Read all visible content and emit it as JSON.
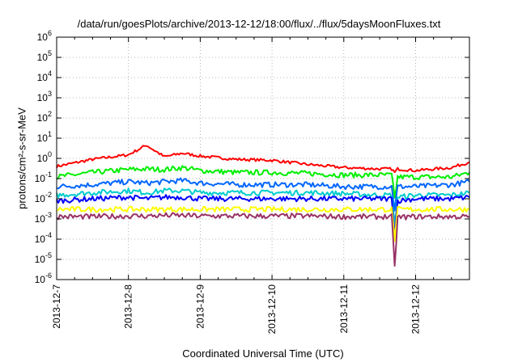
{
  "chart_data": {
    "type": "line",
    "title": "/data/run/goesPlots/archive/2013-12-12/18:00/flux/../flux/5daysMoonFluxes.txt",
    "xlabel": "Coordinated Universal Time (UTC)",
    "ylabel": "protons/cm²-s-sr-MeV",
    "y_scale": "log",
    "xlim": [
      "2013-12-07 00:00",
      "2013-12-12 18:00"
    ],
    "ylim": [
      1e-06,
      1000000.0
    ],
    "x_ticks": [
      "2013-12-7",
      "2013-12-8",
      "2013-12-9",
      "2013-12-10",
      "2013-12-11",
      "2013-12-12"
    ],
    "y_ticks": [
      {
        "value": 1e-06,
        "base": "10",
        "exp": "-6"
      },
      {
        "value": 1e-05,
        "base": "10",
        "exp": "-5"
      },
      {
        "value": 0.0001,
        "base": "10",
        "exp": "-4"
      },
      {
        "value": 0.001,
        "base": "10",
        "exp": "-3"
      },
      {
        "value": 0.01,
        "base": "10",
        "exp": "-2"
      },
      {
        "value": 0.1,
        "base": "10",
        "exp": "-1"
      },
      {
        "value": 1,
        "base": "10",
        "exp": "0"
      },
      {
        "value": 10.0,
        "base": "10",
        "exp": "1"
      },
      {
        "value": 100.0,
        "base": "10",
        "exp": "2"
      },
      {
        "value": 1000.0,
        "base": "10",
        "exp": "3"
      },
      {
        "value": 10000.0,
        "base": "10",
        "exp": "4"
      },
      {
        "value": 100000.0,
        "base": "10",
        "exp": "5"
      },
      {
        "value": 1000000.0,
        "base": "10",
        "exp": "6"
      }
    ],
    "grid": true,
    "x": [
      "2013-12-07 00:00",
      "2013-12-07 12:00",
      "2013-12-08 00:00",
      "2013-12-08 06:00",
      "2013-12-08 12:00",
      "2013-12-08 18:00",
      "2013-12-09 00:00",
      "2013-12-09 12:00",
      "2013-12-10 00:00",
      "2013-12-10 12:00",
      "2013-12-11 00:00",
      "2013-12-11 12:00",
      "2013-12-11 16:00",
      "2013-12-11 17:00",
      "2013-12-11 18:00",
      "2013-12-12 00:00",
      "2013-12-12 12:00",
      "2013-12-12 18:00"
    ],
    "series": [
      {
        "color": "#ff0000",
        "values": [
          0.4,
          0.9,
          1.5,
          4.5,
          1.2,
          1.8,
          1.3,
          0.9,
          0.8,
          0.5,
          0.35,
          0.3,
          0.3,
          0.2,
          0.3,
          0.25,
          0.35,
          0.65
        ]
      },
      {
        "color": "#00ee00",
        "values": [
          0.12,
          0.2,
          0.28,
          0.3,
          0.28,
          0.35,
          0.25,
          0.2,
          0.2,
          0.18,
          0.15,
          0.15,
          0.15,
          0.01,
          0.12,
          0.12,
          0.12,
          0.2
        ]
      },
      {
        "color": "#0066ff",
        "values": [
          0.04,
          0.05,
          0.07,
          0.06,
          0.07,
          0.08,
          0.06,
          0.05,
          0.05,
          0.05,
          0.04,
          0.04,
          0.04,
          0.003,
          0.04,
          0.04,
          0.05,
          0.07
        ]
      },
      {
        "color": "#00cccc",
        "values": [
          0.015,
          0.02,
          0.025,
          0.02,
          0.025,
          0.025,
          0.02,
          0.02,
          0.02,
          0.02,
          0.018,
          0.015,
          0.015,
          0.0005,
          0.012,
          0.015,
          0.015,
          0.02
        ]
      },
      {
        "color": "#0000ff",
        "values": [
          0.008,
          0.01,
          0.012,
          0.01,
          0.012,
          0.012,
          0.01,
          0.01,
          0.01,
          0.01,
          0.01,
          0.01,
          0.01,
          0.0002,
          0.008,
          0.01,
          0.01,
          0.012
        ]
      },
      {
        "color": "#ffff00",
        "values": [
          0.003,
          0.003,
          0.003,
          0.003,
          0.003,
          0.003,
          0.003,
          0.003,
          0.003,
          0.003,
          0.003,
          0.003,
          0.003,
          0.0001,
          0.003,
          0.003,
          0.003,
          0.003
        ]
      },
      {
        "color": "#993366",
        "values": [
          0.0013,
          0.0013,
          0.0014,
          0.0014,
          0.0015,
          0.0015,
          0.0014,
          0.0014,
          0.0014,
          0.0014,
          0.0013,
          0.0013,
          0.0013,
          4e-06,
          0.0012,
          0.0013,
          0.0013,
          0.0013
        ]
      }
    ]
  }
}
